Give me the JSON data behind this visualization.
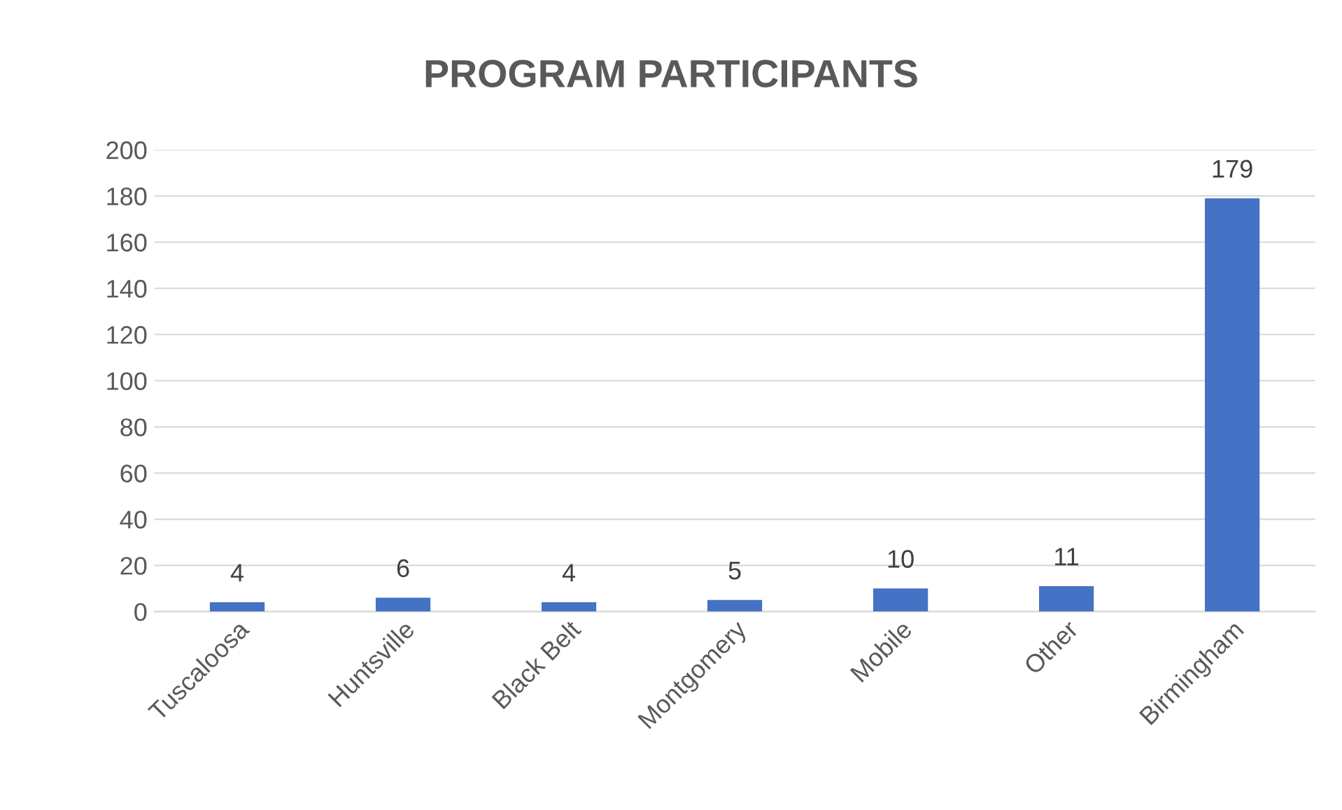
{
  "chart_data": {
    "type": "bar",
    "title": "PROGRAM PARTICIPANTS",
    "categories": [
      "Tuscaloosa",
      "Huntsville",
      "Black Belt",
      "Montgomery",
      "Mobile",
      "Other",
      "Birmingham"
    ],
    "values": [
      4,
      6,
      4,
      5,
      10,
      11,
      179
    ],
    "color": "#4472c4",
    "ylim": [
      0,
      200
    ],
    "yticks": [
      0,
      20,
      40,
      60,
      80,
      100,
      120,
      140,
      160,
      180,
      200
    ],
    "grid": "y",
    "data_labels": true,
    "legend": false
  }
}
